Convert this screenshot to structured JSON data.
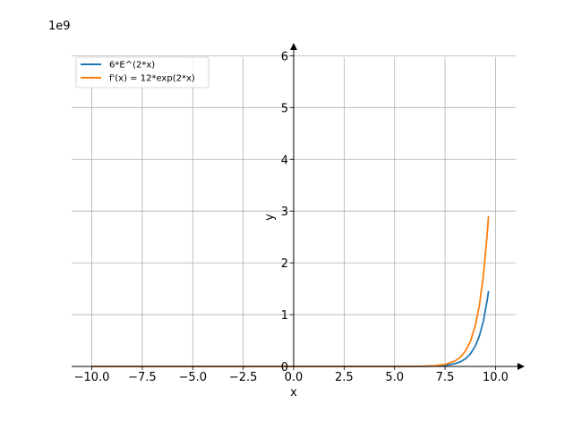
{
  "chart_data": {
    "type": "line",
    "title": "",
    "xlabel": "x",
    "ylabel": "y",
    "y_offset_label": "1e9",
    "xlim": [
      -11.0,
      11.0
    ],
    "ylim": [
      0,
      6.3
    ],
    "y_scale_multiplier": 1000000000,
    "x_ticks": [
      -10.0,
      -7.5,
      -5.0,
      -2.5,
      0.0,
      2.5,
      5.0,
      7.5,
      10.0
    ],
    "x_tick_labels": [
      "−10.0",
      "−7.5",
      "−5.0",
      "−2.5",
      "0.0",
      "2.5",
      "5.0",
      "7.5",
      "10.0"
    ],
    "y_ticks": [
      0,
      1,
      2,
      3,
      4,
      5,
      6
    ],
    "y_tick_labels": [
      "0",
      "1",
      "2",
      "3",
      "4",
      "5",
      "6"
    ],
    "grid": true,
    "legend_position": "top-left",
    "series": [
      {
        "name": "6*E^(2*x)",
        "color": "#1f77b4",
        "x": [
          -10.0,
          -5.0,
          0.0,
          5.0,
          6.0,
          6.5,
          7.0,
          7.5,
          8.0,
          8.25,
          8.5,
          8.75,
          9.0,
          9.2,
          9.4,
          9.6,
          9.65
        ],
        "y": [
          0.0,
          0.0,
          0.0,
          0.000132,
          0.000977,
          0.00266,
          0.00724,
          0.0196,
          0.0533,
          0.0879,
          0.145,
          0.239,
          0.394,
          0.588,
          0.877,
          1.308,
          1.445
        ]
      },
      {
        "name": "f'(x) = 12*exp(2*x)",
        "color": "#ff7f0e",
        "x": [
          -10.0,
          -5.0,
          0.0,
          5.0,
          6.0,
          6.5,
          7.0,
          7.5,
          8.0,
          8.25,
          8.5,
          8.75,
          9.0,
          9.2,
          9.4,
          9.6,
          9.65
        ],
        "y": [
          0.0,
          0.0,
          0.0,
          0.000264,
          0.00195,
          0.00532,
          0.0145,
          0.0392,
          0.107,
          0.176,
          0.29,
          0.478,
          0.788,
          1.176,
          1.754,
          2.616,
          2.89
        ]
      }
    ]
  }
}
